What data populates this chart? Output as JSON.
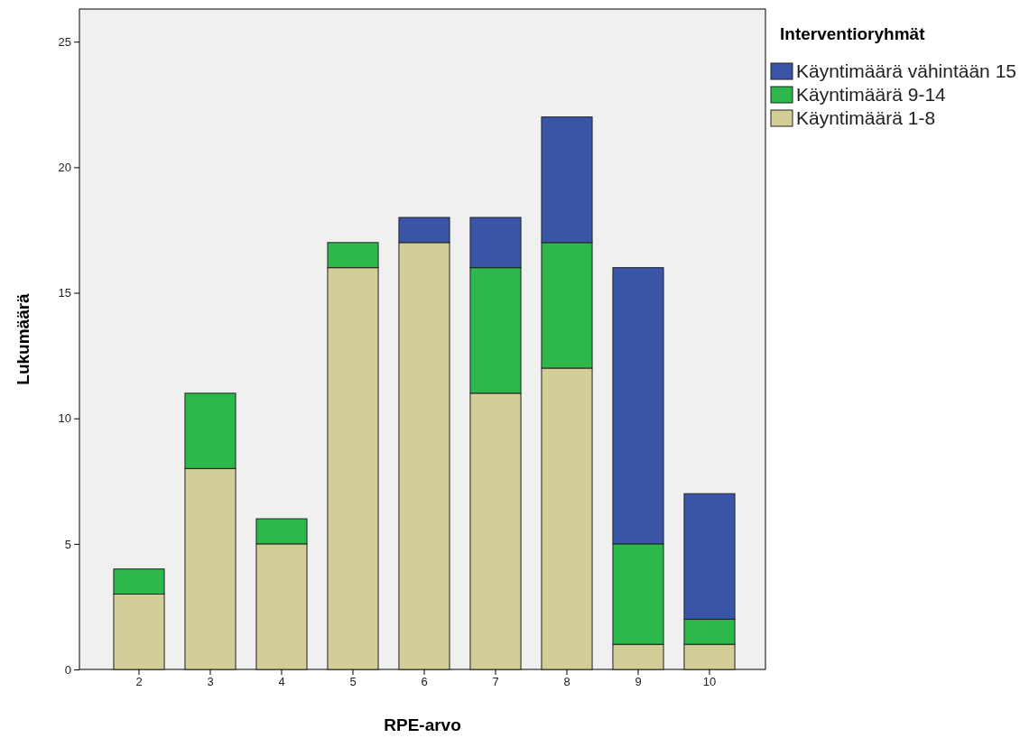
{
  "chart_data": {
    "type": "bar",
    "stacked": true,
    "xlabel": "RPE-arvo",
    "ylabel": "Lukumäärä",
    "legend_title": "Interventioryhmät",
    "legend": "right",
    "categories": [
      "2",
      "3",
      "4",
      "5",
      "6",
      "7",
      "8",
      "9",
      "10"
    ],
    "series": [
      {
        "name": "Käyntimäärä 1-8",
        "color": "#d3ce97",
        "values": [
          3,
          8,
          5,
          16,
          17,
          11,
          12,
          1,
          1
        ]
      },
      {
        "name": "Käyntimäärä 9-14",
        "color": "#2db84b",
        "values": [
          1,
          3,
          1,
          1,
          0,
          5,
          5,
          4,
          1
        ]
      },
      {
        "name": "Käyntimäärä vähintään 15",
        "color": "#3a55a8",
        "values": [
          0,
          0,
          0,
          0,
          1,
          2,
          5,
          11,
          5
        ]
      }
    ],
    "ylim": [
      0,
      26.3
    ],
    "yticks": [
      0,
      5,
      10,
      15,
      20,
      25
    ],
    "grid": false
  }
}
